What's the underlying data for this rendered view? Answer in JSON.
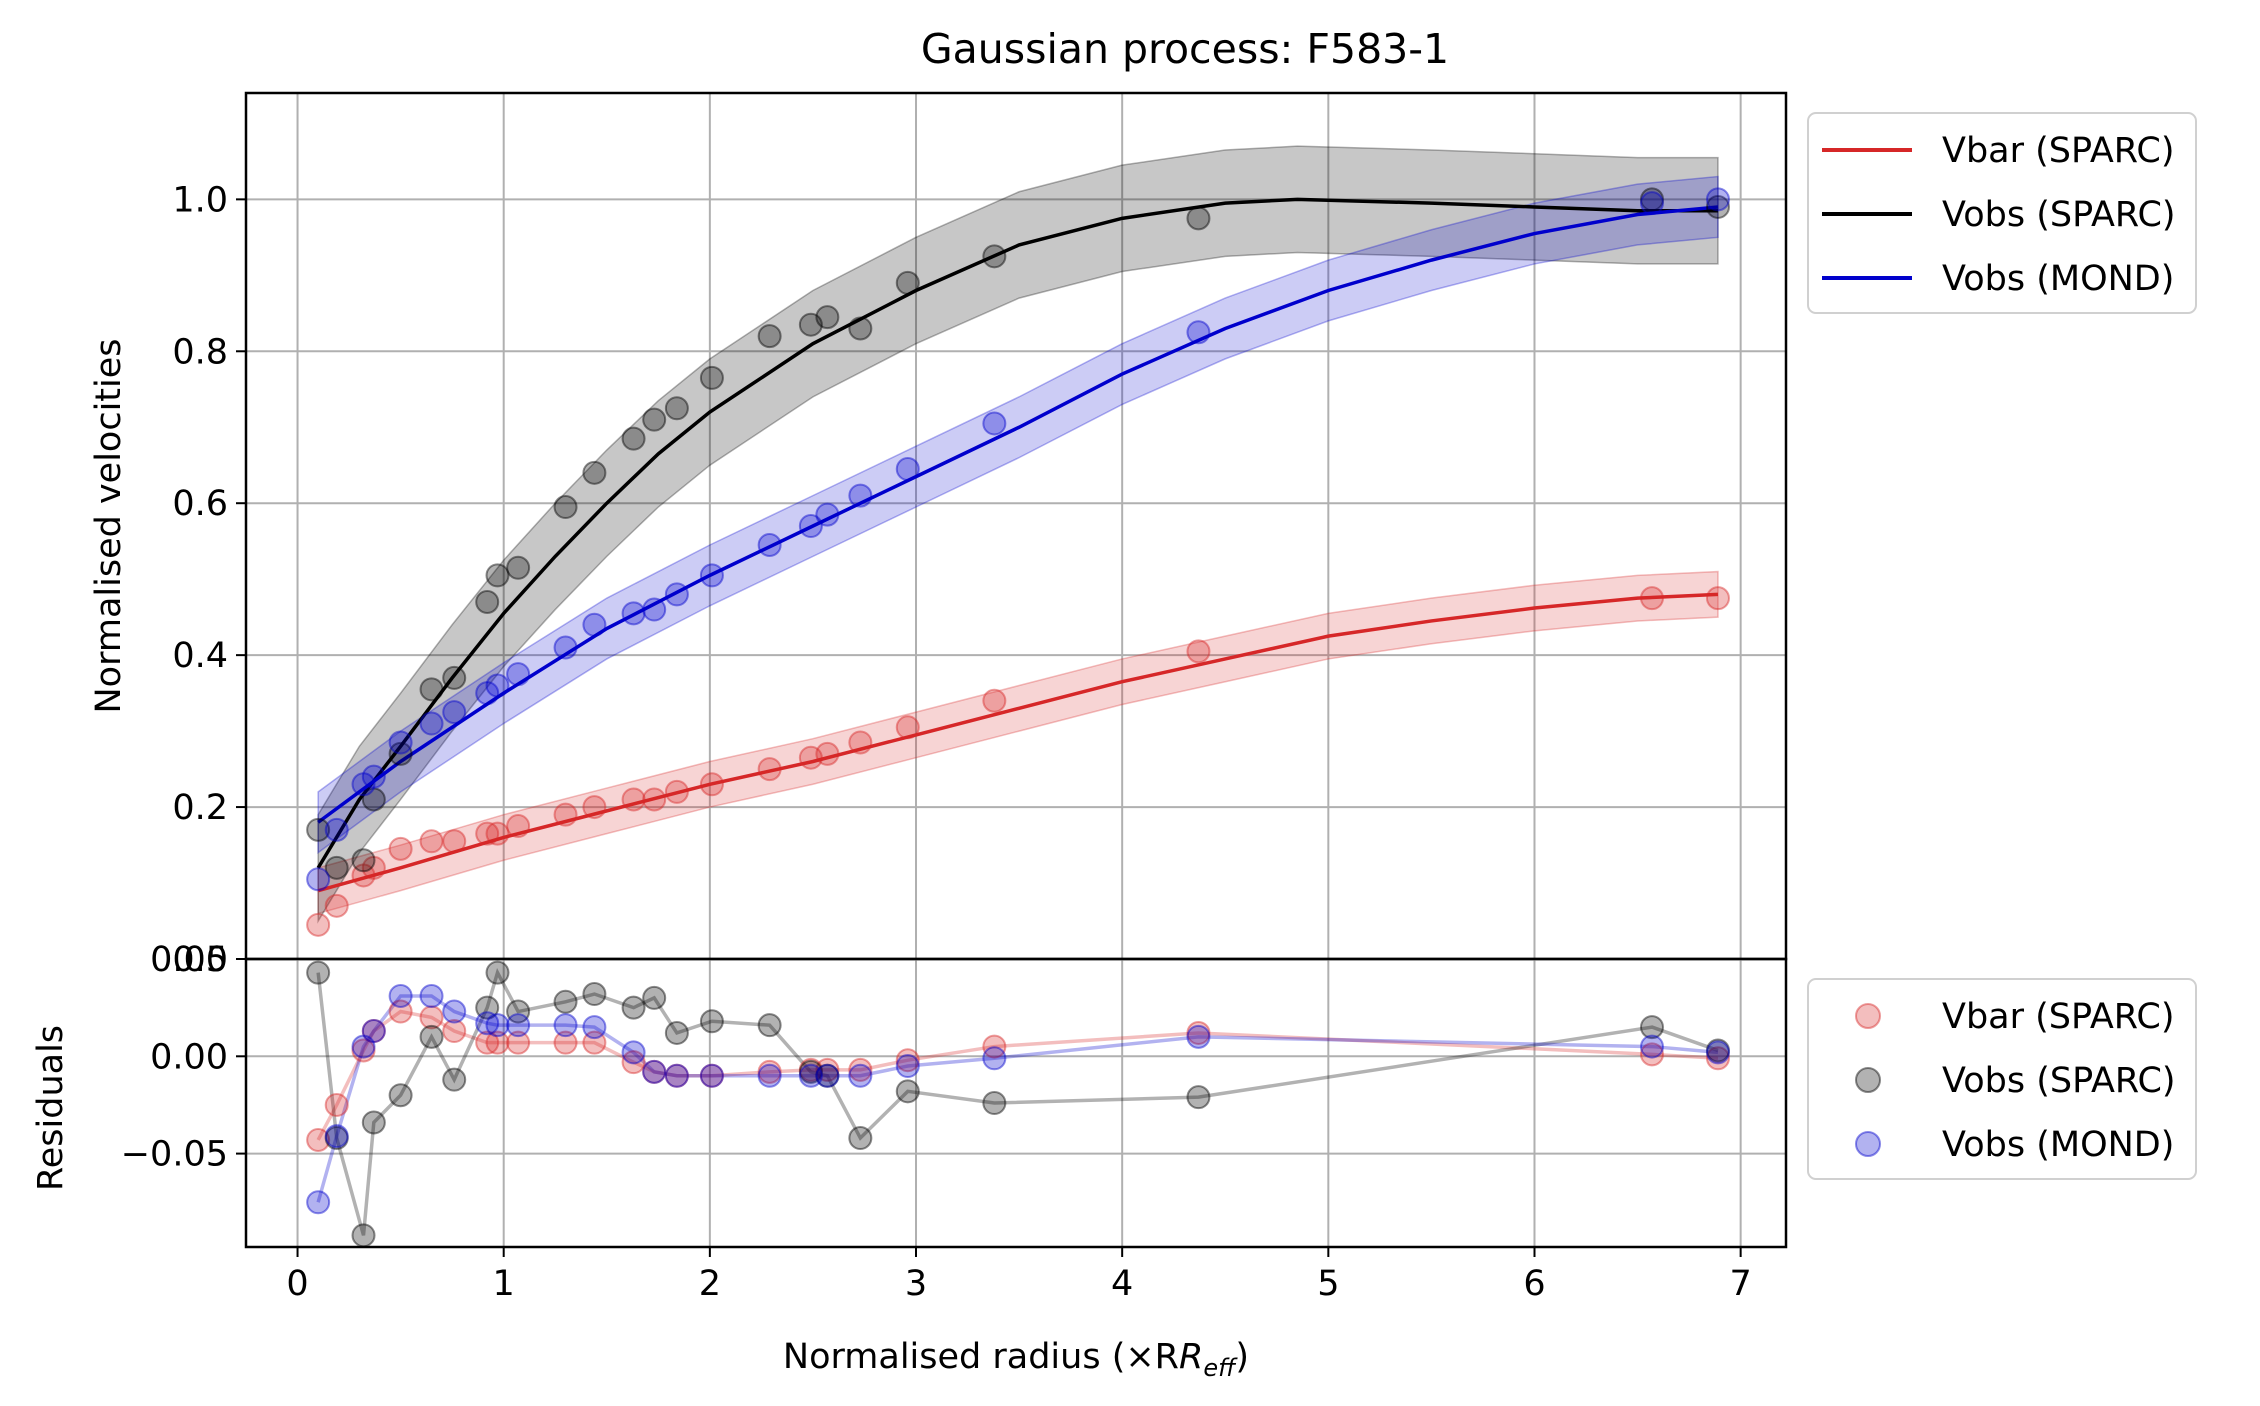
{
  "chart_data": [
    {
      "type": "line",
      "title": "Gaussian process: F583-1",
      "xlabel": "",
      "ylabel": "Normalised velocities",
      "xlim": [
        -0.25,
        7.22
      ],
      "ylim": [
        0.0,
        1.14
      ],
      "xticks": [
        0,
        1,
        2,
        3,
        4,
        5,
        6,
        7
      ],
      "yticks": [
        "0.0",
        "0.2",
        "0.4",
        "0.6",
        "0.8",
        "1.0"
      ],
      "grid": true,
      "legend_position": "outside-top-right",
      "x": [
        0.1,
        0.19,
        0.32,
        0.37,
        0.5,
        0.65,
        0.76,
        0.92,
        0.97,
        1.07,
        1.3,
        1.44,
        1.63,
        1.73,
        1.84,
        2.01,
        2.29,
        2.49,
        2.57,
        2.73,
        2.96,
        3.38,
        4.37,
        6.57,
        6.89
      ],
      "series": [
        {
          "name": "Vbar (SPARC)",
          "color": "#d62728",
          "points": [
            0.045,
            0.07,
            0.11,
            0.12,
            0.145,
            0.155,
            0.155,
            0.165,
            0.165,
            0.175,
            0.19,
            0.2,
            0.21,
            0.21,
            0.22,
            0.23,
            0.25,
            0.265,
            0.27,
            0.285,
            0.305,
            0.34,
            0.405,
            0.475,
            0.475
          ],
          "fit": [
            [
              0.1,
              0.09
            ],
            [
              0.5,
              0.12
            ],
            [
              1.0,
              0.16
            ],
            [
              1.5,
              0.195
            ],
            [
              2.0,
              0.23
            ],
            [
              2.5,
              0.26
            ],
            [
              3.0,
              0.295
            ],
            [
              3.5,
              0.33
            ],
            [
              4.0,
              0.365
            ],
            [
              4.5,
              0.395
            ],
            [
              5.0,
              0.425
            ],
            [
              5.5,
              0.445
            ],
            [
              6.0,
              0.462
            ],
            [
              6.5,
              0.475
            ],
            [
              6.89,
              0.48
            ]
          ],
          "band": 0.03
        },
        {
          "name": "Vobs (SPARC)",
          "color": "#000000",
          "points": [
            0.17,
            0.12,
            0.13,
            0.21,
            0.27,
            0.355,
            0.37,
            0.47,
            0.505,
            0.515,
            0.595,
            0.64,
            0.685,
            0.71,
            0.725,
            0.765,
            0.82,
            0.835,
            0.845,
            0.83,
            0.89,
            0.925,
            0.975,
            1.0,
            0.99
          ],
          "fit": [
            [
              0.1,
              0.12
            ],
            [
              0.3,
              0.21
            ],
            [
              0.5,
              0.28
            ],
            [
              0.75,
              0.37
            ],
            [
              1.0,
              0.455
            ],
            [
              1.25,
              0.53
            ],
            [
              1.5,
              0.6
            ],
            [
              1.75,
              0.665
            ],
            [
              2.0,
              0.72
            ],
            [
              2.5,
              0.81
            ],
            [
              3.0,
              0.88
            ],
            [
              3.5,
              0.94
            ],
            [
              4.0,
              0.975
            ],
            [
              4.5,
              0.995
            ],
            [
              4.85,
              1.0
            ],
            [
              5.5,
              0.995
            ],
            [
              6.0,
              0.99
            ],
            [
              6.5,
              0.985
            ],
            [
              6.89,
              0.985
            ]
          ],
          "band": 0.07
        },
        {
          "name": "Vobs (MOND)",
          "color": "#0000cc",
          "points": [
            0.105,
            0.17,
            0.23,
            0.24,
            0.285,
            0.31,
            0.325,
            0.35,
            0.36,
            0.375,
            0.41,
            0.44,
            0.455,
            0.46,
            0.48,
            0.505,
            0.545,
            0.57,
            0.585,
            0.61,
            0.645,
            0.705,
            0.825,
            0.995,
            1.0
          ],
          "fit": [
            [
              0.1,
              0.18
            ],
            [
              0.5,
              0.26
            ],
            [
              1.0,
              0.35
            ],
            [
              1.5,
              0.435
            ],
            [
              2.0,
              0.505
            ],
            [
              2.5,
              0.57
            ],
            [
              3.0,
              0.635
            ],
            [
              3.5,
              0.7
            ],
            [
              4.0,
              0.77
            ],
            [
              4.5,
              0.83
            ],
            [
              5.0,
              0.88
            ],
            [
              5.5,
              0.92
            ],
            [
              6.0,
              0.955
            ],
            [
              6.5,
              0.98
            ],
            [
              6.89,
              0.99
            ]
          ],
          "band": 0.04
        }
      ]
    },
    {
      "type": "line",
      "title": "",
      "xlabel": "Normalised radius (×R",
      "xlabel_sub": "eff",
      "xlabel_close": ")",
      "ylabel": "Residuals",
      "xlim": [
        -0.25,
        7.22
      ],
      "ylim": [
        -0.098,
        0.05
      ],
      "xticks": [
        0,
        1,
        2,
        3,
        4,
        5,
        6,
        7
      ],
      "yticks": [
        "0.05",
        "0.00",
        "−0.05"
      ],
      "ytick_values": [
        0.05,
        0.0,
        -0.05
      ],
      "grid": true,
      "legend_position": "outside-right",
      "x": [
        0.1,
        0.19,
        0.32,
        0.37,
        0.5,
        0.65,
        0.76,
        0.92,
        0.97,
        1.07,
        1.3,
        1.44,
        1.63,
        1.73,
        1.84,
        2.01,
        2.29,
        2.49,
        2.57,
        2.73,
        2.96,
        3.38,
        4.37,
        6.57,
        6.89
      ],
      "series": [
        {
          "name": "Vbar (SPARC)",
          "color": "#d62728",
          "values": [
            -0.043,
            -0.025,
            0.003,
            0.013,
            0.023,
            0.02,
            0.013,
            0.007,
            0.007,
            0.007,
            0.007,
            0.007,
            -0.003,
            -0.008,
            -0.01,
            -0.01,
            -0.008,
            -0.007,
            -0.007,
            -0.007,
            -0.002,
            0.005,
            0.012,
            0.001,
            -0.001
          ]
        },
        {
          "name": "Vobs (SPARC)",
          "color": "#000000",
          "values": [
            0.043,
            -0.042,
            -0.092,
            -0.034,
            -0.02,
            0.01,
            -0.012,
            0.025,
            0.043,
            0.023,
            0.028,
            0.032,
            0.025,
            0.03,
            0.012,
            0.018,
            0.016,
            -0.008,
            -0.01,
            -0.042,
            -0.018,
            -0.024,
            -0.021,
            0.015,
            0.003
          ]
        },
        {
          "name": "Vobs (MOND)",
          "color": "#0000cc",
          "values": [
            -0.075,
            -0.041,
            0.005,
            0.013,
            0.031,
            0.031,
            0.023,
            0.017,
            0.016,
            0.016,
            0.016,
            0.015,
            0.002,
            -0.008,
            -0.01,
            -0.01,
            -0.01,
            -0.01,
            -0.01,
            -0.01,
            -0.005,
            -0.001,
            0.01,
            0.005,
            0.002
          ]
        }
      ]
    }
  ]
}
